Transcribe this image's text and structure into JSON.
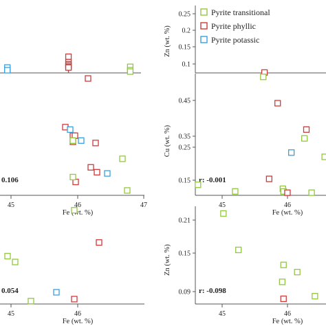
{
  "legend": {
    "items": [
      {
        "label": "Pyrite transitional",
        "color": "#92c83e"
      },
      {
        "label": "Pyrite phyllic",
        "color": "#d03a3a"
      },
      {
        "label": "Pyrite potassic",
        "color": "#3aa0dd"
      }
    ]
  },
  "chart_data": [
    {
      "id": "tl",
      "type": "scatter",
      "title": "",
      "xlabel": "",
      "ylabel": "",
      "annotation": "",
      "xlim": [
        44.9,
        47.0
      ],
      "ylim": [
        0,
        1
      ],
      "xticks": [],
      "yticks": [],
      "series": [
        {
          "group": "potassic",
          "points": [
            [
              45.01,
              0.05
            ],
            [
              45.01,
              0.08
            ],
            [
              45.01,
              0.04
            ]
          ]
        },
        {
          "group": "phyllic",
          "points": [
            [
              45.92,
              0.24
            ],
            [
              45.92,
              0.16
            ],
            [
              45.92,
              0.13
            ],
            [
              45.92,
              0.11
            ],
            [
              45.92,
              0.09
            ],
            [
              45.92,
              0.08
            ]
          ]
        },
        {
          "group": "transitional",
          "points": [
            [
              46.84,
              0.09
            ],
            [
              46.84,
              0.04
            ],
            [
              46.84,
              0.02
            ]
          ]
        }
      ]
    },
    {
      "id": "tr",
      "type": "scatter",
      "title": "",
      "xlabel": "",
      "ylabel": "Zn (wt. %)",
      "annotation": "",
      "xlim": [
        44.6,
        47.0
      ],
      "ylim": [
        0.08,
        0.26
      ],
      "xticks": [],
      "yticks": [
        "0.25",
        "0.2",
        "0.15",
        "0.1"
      ],
      "series": [
        {
          "group": "phyllic",
          "points": [
            [
              45.87,
              0.081
            ]
          ]
        }
      ]
    },
    {
      "id": "ml",
      "type": "scatter",
      "title": "",
      "xlabel": "Fe (wt. %)",
      "ylabel": "",
      "annotation": "0.106",
      "xlim": [
        44.9,
        47.0
      ],
      "ylim": [
        0,
        1
      ],
      "xticks": [
        "45",
        "46",
        "47"
      ],
      "yticks": [],
      "series": [
        {
          "group": "phyllic",
          "points": [
            [
              46.18,
              0.96
            ],
            [
              45.85,
              0.56
            ],
            [
              45.96,
              0.49
            ],
            [
              45.99,
              0.49
            ],
            [
              46.29,
              0.43
            ],
            [
              45.96,
              0.44
            ],
            [
              46.22,
              0.23
            ],
            [
              46.31,
              0.19
            ],
            [
              46.0,
              0.11
            ]
          ]
        },
        {
          "group": "potassic",
          "points": [
            [
              45.92,
              0.54
            ],
            [
              46.08,
              0.45
            ],
            [
              46.46,
              0.18
            ]
          ]
        },
        {
          "group": "transitional",
          "points": [
            [
              45.96,
              0.45
            ],
            [
              45.96,
              0.15
            ],
            [
              46.68,
              0.3
            ],
            [
              46.75,
              0.04
            ]
          ]
        }
      ]
    },
    {
      "id": "mr",
      "type": "scatter",
      "title": "",
      "xlabel": "Fe (wt. %)",
      "ylabel": "Cu (wt. %)",
      "annotation": "r: -0.001",
      "xlim": [
        44.6,
        46.6
      ],
      "ylim": [
        0.1,
        0.47
      ],
      "xticks": [
        "45",
        "46"
      ],
      "yticks": [
        "0.45",
        "0.35",
        "0.25",
        "0.15"
      ],
      "series": [
        {
          "group": "transitional",
          "points": [
            [
              44.64,
              0.132
            ],
            [
              45.21,
              0.112
            ],
            [
              45.64,
              0.46
            ],
            [
              45.94,
              0.12
            ],
            [
              45.95,
              0.112
            ],
            [
              46.27,
              0.273
            ],
            [
              46.38,
              0.108
            ],
            [
              46.58,
              0.217
            ]
          ]
        },
        {
          "group": "phyllic",
          "points": [
            [
              45.73,
              0.15
            ],
            [
              45.86,
              0.38
            ],
            [
              46.01,
              0.108
            ],
            [
              46.3,
              0.3
            ]
          ]
        },
        {
          "group": "potassic",
          "points": [
            [
              46.07,
              0.23
            ]
          ]
        }
      ]
    },
    {
      "id": "bl",
      "type": "scatter",
      "title": "",
      "xlabel": "Fe (wt. %)",
      "ylabel": "",
      "annotation": "0.054",
      "xlim": [
        44.9,
        47.0
      ],
      "ylim": [
        0,
        1
      ],
      "xticks": [
        "45",
        "46"
      ],
      "yticks": [],
      "series": [
        {
          "group": "transitional",
          "points": [
            [
              45.98,
              0.96
            ],
            [
              45.01,
              0.49
            ],
            [
              45.12,
              0.43
            ],
            [
              45.35,
              0.03
            ]
          ]
        },
        {
          "group": "phyllic",
          "points": [
            [
              46.34,
              0.63
            ],
            [
              45.98,
              0.05
            ]
          ]
        },
        {
          "group": "potassic",
          "points": [
            [
              45.72,
              0.12
            ]
          ]
        }
      ]
    },
    {
      "id": "br",
      "type": "scatter",
      "title": "",
      "xlabel": "Fe (wt. %)",
      "ylabel": "Zn (wt. %)",
      "annotation": "r: -0.098",
      "xlim": [
        44.6,
        46.6
      ],
      "ylim": [
        0.075,
        0.225
      ],
      "xticks": [
        "45",
        "46"
      ],
      "yticks": [
        "0.21",
        "0.15",
        "0.09"
      ],
      "series": [
        {
          "group": "transitional",
          "points": [
            [
              45.03,
              0.214
            ],
            [
              45.26,
              0.158
            ],
            [
              45.95,
              0.135
            ],
            [
              45.93,
              0.109
            ],
            [
              46.16,
              0.124
            ],
            [
              46.43,
              0.087
            ]
          ]
        },
        {
          "group": "phyllic",
          "points": [
            [
              45.95,
              0.083
            ]
          ]
        }
      ]
    }
  ]
}
